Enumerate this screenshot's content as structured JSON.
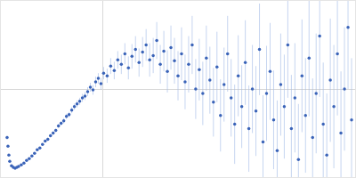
{
  "chart_data": {
    "type": "scatter",
    "x": [
      7,
      8,
      9,
      10,
      12,
      14,
      16,
      18,
      20,
      23,
      26,
      29,
      32,
      35,
      38,
      41,
      44,
      47,
      50,
      53,
      56,
      59,
      62,
      65,
      68,
      71,
      74,
      77,
      80,
      83,
      86,
      89,
      92,
      95,
      98,
      101,
      104,
      107,
      110,
      113,
      116,
      120,
      124,
      128,
      132,
      136,
      140,
      144,
      148,
      152,
      156,
      160,
      164,
      168,
      172,
      176,
      180,
      184,
      188,
      192,
      196,
      200,
      204,
      208,
      212,
      216,
      220,
      224,
      228,
      232,
      236,
      240,
      244,
      248,
      252,
      256,
      260,
      264,
      268,
      272,
      276,
      280,
      284,
      288,
      292,
      296,
      300,
      304,
      308,
      312,
      316,
      320,
      324,
      328,
      332,
      336,
      340,
      344,
      348,
      352,
      356,
      360,
      364,
      368,
      372,
      376,
      380,
      384,
      388,
      392,
      396
    ],
    "values": [
      45,
      35,
      25,
      18,
      13,
      11,
      10,
      11,
      12,
      14,
      16,
      19,
      21,
      24,
      27,
      31,
      33,
      37,
      41,
      43,
      47,
      50,
      53,
      58,
      61,
      64,
      69,
      71,
      76,
      80,
      83,
      86,
      90,
      92,
      97,
      102,
      99,
      108,
      112,
      106,
      118,
      115,
      126,
      121,
      133,
      128,
      140,
      124,
      137,
      145,
      130,
      142,
      150,
      133,
      138,
      155,
      128,
      143,
      120,
      147,
      132,
      115,
      140,
      108,
      128,
      150,
      100,
      122,
      95,
      135,
      110,
      85,
      125,
      70,
      105,
      140,
      90,
      60,
      115,
      80,
      130,
      55,
      100,
      75,
      145,
      40,
      95,
      120,
      65,
      30,
      105,
      80,
      150,
      55,
      90,
      20,
      115,
      70,
      135,
      45,
      95,
      160,
      60,
      25,
      110,
      80,
      140,
      50,
      100,
      170,
      65
    ],
    "error": [
      2,
      1.5,
      1,
      1,
      1,
      1,
      1,
      1,
      1,
      1,
      1,
      1,
      1,
      1,
      1,
      1.5,
      1.5,
      1.5,
      1.5,
      2,
      2,
      2,
      2,
      2.5,
      2.5,
      3,
      3,
      3,
      3.5,
      3.5,
      4,
      4,
      4.5,
      4.5,
      5,
      5,
      5.5,
      6,
      6,
      6.5,
      7,
      8,
      9,
      10,
      10,
      11,
      12,
      13,
      14,
      15,
      16,
      17,
      18,
      19,
      20,
      21,
      22,
      23,
      24,
      25,
      26,
      28,
      30,
      31,
      32,
      33,
      34,
      35,
      36,
      37,
      38,
      39,
      40,
      41,
      42,
      43,
      44,
      45,
      46,
      47,
      48,
      49,
      50,
      51,
      52,
      53,
      54,
      55,
      56,
      57,
      58,
      59,
      60,
      61,
      62,
      63,
      64,
      65,
      66,
      67,
      68,
      69,
      70,
      70,
      70,
      70,
      70,
      70,
      70,
      70,
      70
    ],
    "xlim": [
      0,
      400
    ],
    "ylim": [
      0,
      200
    ],
    "xticks": [
      115
    ],
    "yticks": [
      100
    ],
    "grid": true,
    "tick_labels": false,
    "color": "#3a63b8",
    "marker": "circle"
  }
}
